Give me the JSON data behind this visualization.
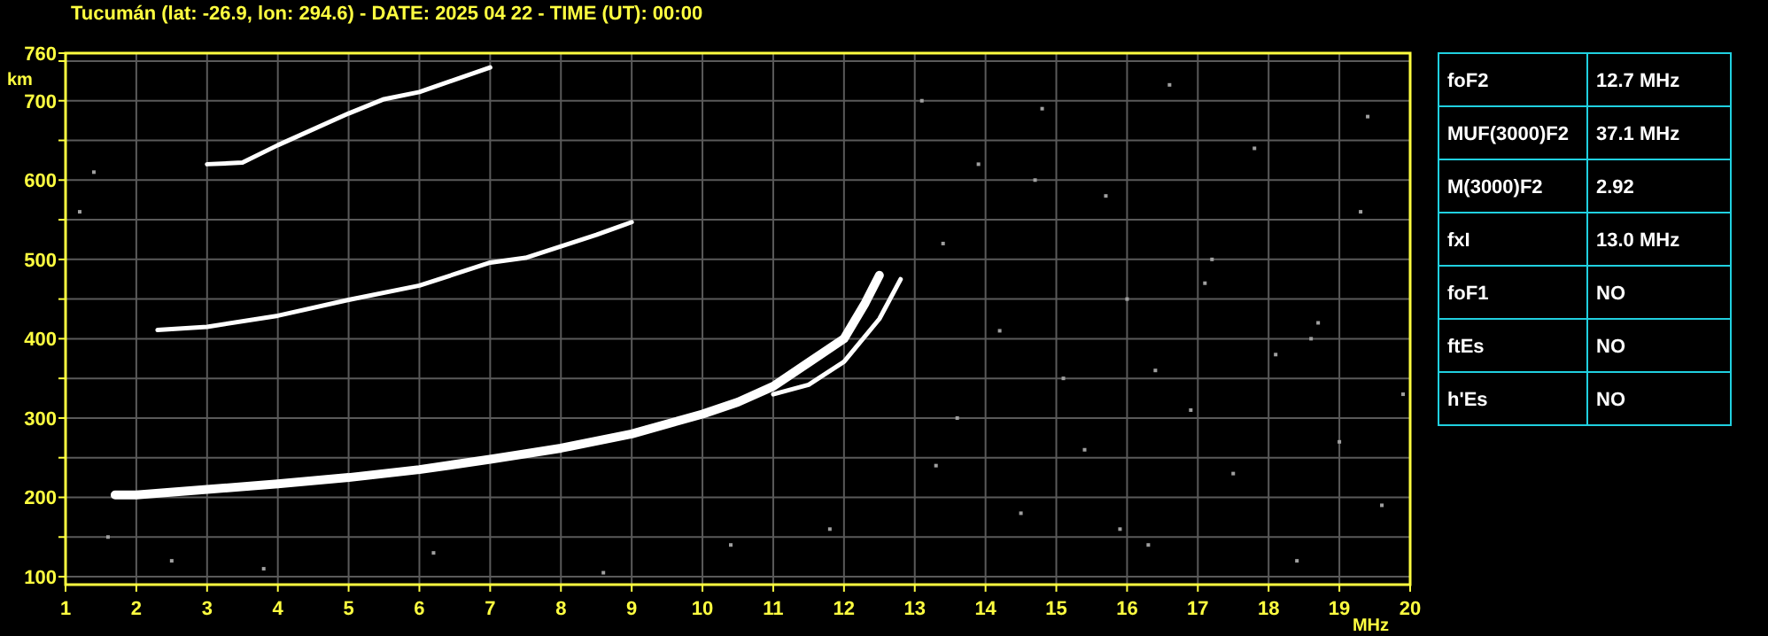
{
  "chart_data": [
    {
      "type": "line",
      "title": "Tucumán (lat: -26.9, lon: 294.6) - DATE: 2025 04 22 - TIME (UT): 00:00",
      "xlabel": "MHz",
      "ylabel": "km",
      "xlim": [
        1,
        20
      ],
      "ylim": [
        90,
        760
      ],
      "xticks": [
        1,
        2,
        3,
        4,
        5,
        6,
        7,
        8,
        9,
        10,
        11,
        12,
        13,
        14,
        15,
        16,
        17,
        18,
        19,
        20
      ],
      "yticks": [
        100,
        {
          "value": 150,
          "label": null
        },
        200,
        {
          "value": 250,
          "label": null
        },
        300,
        {
          "value": 350,
          "label": null
        },
        400,
        {
          "value": 450,
          "label": null
        },
        500,
        {
          "value": 550,
          "label": null
        },
        600,
        {
          "value": 650,
          "label": null
        },
        700,
        {
          "value": 750,
          "label": null
        },
        760
      ],
      "grid": true,
      "line_style": "solid",
      "series": [
        {
          "color": "#ffffff",
          "x": [
            1.7,
            2,
            3,
            4,
            5,
            6,
            7,
            8,
            9,
            10,
            10.5,
            11,
            11.5,
            12,
            12.3,
            12.5
          ],
          "values": [
            203,
            203,
            210,
            217,
            225,
            235,
            248,
            262,
            280,
            305,
            320,
            340,
            370,
            400,
            445,
            480
          ]
        },
        {
          "color": "#ffffff",
          "x": [
            11,
            11.5,
            12,
            12.5,
            12.8
          ],
          "values": [
            330,
            342,
            371,
            425,
            475
          ]
        },
        {
          "color": "#ffffff",
          "x": [
            2.3,
            3,
            4,
            5,
            6,
            7,
            7.5,
            8.5,
            9
          ],
          "values": [
            411,
            415,
            429,
            449,
            467,
            496,
            502,
            531,
            547
          ]
        },
        {
          "color": "#ffffff",
          "x": [
            3,
            3.5,
            4,
            5,
            5.5,
            6,
            7
          ],
          "values": [
            620,
            622,
            644,
            684,
            702,
            711,
            742
          ]
        },
        {
          "type": "scatter",
          "marker": "square",
          "color": "#a0a0a0",
          "x": [
            1.2,
            1.4,
            1.6,
            2.5,
            3.8,
            6.2,
            8.6,
            10.4,
            11.8,
            13.1,
            13.4,
            13.6,
            13.9,
            14.2,
            14.5,
            14.8,
            15.1,
            15.4,
            15.7,
            16.0,
            16.3,
            16.6,
            16.9,
            17.2,
            17.5,
            17.8,
            18.1,
            18.4,
            18.7,
            19.0,
            19.3,
            19.6,
            19.9,
            13.3,
            14.7,
            15.9,
            17.1,
            18.6,
            19.4,
            16.4
          ],
          "values": [
            560,
            610,
            150,
            120,
            110,
            130,
            105,
            140,
            160,
            700,
            520,
            300,
            620,
            410,
            180,
            690,
            350,
            260,
            580,
            450,
            140,
            720,
            310,
            500,
            230,
            640,
            380,
            120,
            420,
            270,
            560,
            190,
            330,
            240,
            600,
            160,
            470,
            400,
            680,
            360
          ]
        }
      ]
    },
    {
      "type": "other",
      "categories": [
        "foF2",
        "MUF(3000)F2",
        "M(3000)F2",
        "fxI",
        "foF1",
        "ftEs",
        "h'Es"
      ],
      "value_labels": [
        "12.7 MHz",
        "37.1 MHz",
        "2.92",
        "13.0 MHz",
        "NO",
        "NO",
        "NO"
      ]
    }
  ]
}
